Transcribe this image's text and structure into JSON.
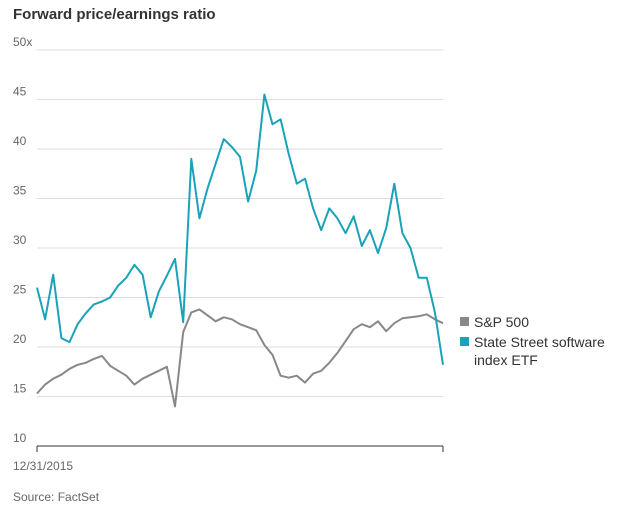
{
  "chart_data": {
    "type": "line",
    "title": "Forward price/earnings ratio",
    "source": "Source: FactSet",
    "xlabel": "",
    "ylabel": "",
    "x_start_label": "12/31/2015",
    "ylim": [
      10,
      50
    ],
    "yticks": [
      {
        "value": 50,
        "label": "50x"
      },
      {
        "value": 45,
        "label": "45"
      },
      {
        "value": 40,
        "label": "40"
      },
      {
        "value": 35,
        "label": "35"
      },
      {
        "value": 30,
        "label": "30"
      },
      {
        "value": 25,
        "label": "25"
      },
      {
        "value": 20,
        "label": "20"
      },
      {
        "value": 15,
        "label": "15"
      },
      {
        "value": 10,
        "label": "10"
      }
    ],
    "grid": true,
    "legend_position": "right",
    "x": [
      0,
      0.02,
      0.04,
      0.06,
      0.08,
      0.1,
      0.12,
      0.14,
      0.16,
      0.18,
      0.2,
      0.22,
      0.24,
      0.26,
      0.28,
      0.3,
      0.32,
      0.34,
      0.36,
      0.38,
      0.4,
      0.42,
      0.44,
      0.46,
      0.48,
      0.5,
      0.52,
      0.54,
      0.56,
      0.58,
      0.6,
      0.62,
      0.64,
      0.66,
      0.68,
      0.7,
      0.72,
      0.74,
      0.76,
      0.78,
      0.8,
      0.82,
      0.84,
      0.86,
      0.88,
      0.9,
      0.92,
      0.94,
      0.96,
      0.98,
      1.0
    ],
    "series": [
      {
        "name": "S&P 500",
        "color": "#888888",
        "values": [
          15.3,
          16.2,
          16.8,
          17.2,
          17.8,
          18.2,
          18.4,
          18.8,
          19.1,
          18.1,
          17.6,
          17.1,
          16.2,
          16.8,
          17.2,
          17.6,
          18.0,
          14.0,
          21.5,
          23.5,
          23.8,
          23.2,
          22.6,
          23.0,
          22.8,
          22.3,
          22.0,
          21.7,
          20.2,
          19.2,
          17.1,
          16.9,
          17.1,
          16.4,
          17.3,
          17.6,
          18.4,
          19.4,
          20.6,
          21.8,
          22.3,
          22.0,
          22.6,
          21.6,
          22.4,
          22.9,
          23.0,
          23.1,
          23.3,
          22.8,
          22.4
        ]
      },
      {
        "name": "State Street software index ETF",
        "color": "#1aa3b8",
        "values": [
          26.0,
          22.8,
          27.3,
          20.9,
          20.5,
          22.3,
          23.4,
          24.3,
          24.6,
          25.0,
          26.2,
          27.0,
          28.3,
          27.3,
          23.0,
          25.6,
          27.2,
          28.9,
          22.5,
          39.0,
          33.0,
          36.0,
          38.5,
          41.0,
          40.2,
          39.2,
          34.7,
          37.8,
          45.5,
          42.5,
          43.0,
          39.5,
          36.5,
          37.0,
          34.0,
          31.8,
          34.0,
          33.0,
          31.5,
          33.2,
          30.2,
          31.8,
          29.5,
          32.0,
          36.5,
          31.5,
          30.0,
          27.0,
          27.0,
          23.5,
          18.2
        ]
      }
    ]
  }
}
